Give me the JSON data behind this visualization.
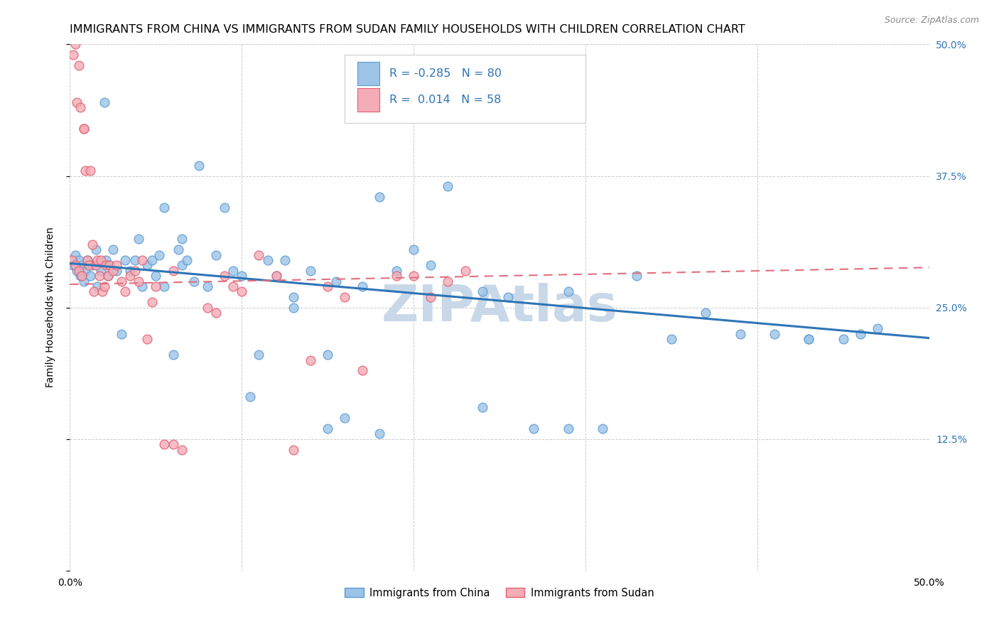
{
  "title": "IMMIGRANTS FROM CHINA VS IMMIGRANTS FROM SUDAN FAMILY HOUSEHOLDS WITH CHILDREN CORRELATION CHART",
  "source": "Source: ZipAtlas.com",
  "ylabel": "Family Households with Children",
  "xlim": [
    0,
    0.5
  ],
  "ylim": [
    0,
    0.5
  ],
  "china_color_edge": "#5b9bd5",
  "china_color_fill": "#9dc3e6",
  "sudan_color_edge": "#e06070",
  "sudan_color_fill": "#f4acb7",
  "china_line_color": "#2e75b6",
  "sudan_line_color": "#e07080",
  "china_R": -0.285,
  "china_N": 80,
  "sudan_R": 0.014,
  "sudan_N": 58,
  "legend_label_china": "Immigrants from China",
  "legend_label_sudan": "Immigrants from Sudan",
  "china_x": [
    0.002,
    0.003,
    0.004,
    0.005,
    0.006,
    0.007,
    0.008,
    0.009,
    0.01,
    0.012,
    0.013,
    0.015,
    0.016,
    0.018,
    0.02,
    0.021,
    0.022,
    0.023,
    0.025,
    0.027,
    0.03,
    0.032,
    0.035,
    0.038,
    0.04,
    0.042,
    0.045,
    0.048,
    0.05,
    0.052,
    0.055,
    0.06,
    0.063,
    0.065,
    0.068,
    0.072,
    0.075,
    0.08,
    0.085,
    0.09,
    0.095,
    0.1,
    0.105,
    0.11,
    0.115,
    0.12,
    0.125,
    0.13,
    0.14,
    0.15,
    0.155,
    0.16,
    0.17,
    0.18,
    0.19,
    0.2,
    0.21,
    0.22,
    0.24,
    0.255,
    0.27,
    0.29,
    0.31,
    0.33,
    0.35,
    0.37,
    0.39,
    0.41,
    0.43,
    0.45,
    0.46,
    0.47,
    0.055,
    0.065,
    0.13,
    0.15,
    0.18,
    0.24,
    0.29,
    0.43
  ],
  "china_y": [
    0.29,
    0.3,
    0.285,
    0.295,
    0.28,
    0.29,
    0.275,
    0.285,
    0.295,
    0.28,
    0.29,
    0.305,
    0.27,
    0.285,
    0.445,
    0.295,
    0.28,
    0.29,
    0.305,
    0.285,
    0.225,
    0.295,
    0.285,
    0.295,
    0.315,
    0.27,
    0.29,
    0.295,
    0.28,
    0.3,
    0.345,
    0.205,
    0.305,
    0.29,
    0.295,
    0.275,
    0.385,
    0.27,
    0.3,
    0.345,
    0.285,
    0.28,
    0.165,
    0.205,
    0.295,
    0.28,
    0.295,
    0.26,
    0.285,
    0.205,
    0.275,
    0.145,
    0.27,
    0.355,
    0.285,
    0.305,
    0.29,
    0.365,
    0.265,
    0.26,
    0.135,
    0.265,
    0.135,
    0.28,
    0.22,
    0.245,
    0.225,
    0.225,
    0.22,
    0.22,
    0.225,
    0.23,
    0.27,
    0.315,
    0.25,
    0.135,
    0.13,
    0.155,
    0.135,
    0.22
  ],
  "sudan_x": [
    0.001,
    0.002,
    0.003,
    0.004,
    0.005,
    0.006,
    0.007,
    0.008,
    0.009,
    0.01,
    0.011,
    0.012,
    0.013,
    0.014,
    0.015,
    0.016,
    0.017,
    0.018,
    0.019,
    0.02,
    0.021,
    0.022,
    0.023,
    0.025,
    0.027,
    0.03,
    0.032,
    0.035,
    0.038,
    0.04,
    0.042,
    0.045,
    0.048,
    0.05,
    0.055,
    0.06,
    0.065,
    0.08,
    0.085,
    0.09,
    0.095,
    0.1,
    0.11,
    0.12,
    0.13,
    0.14,
    0.15,
    0.16,
    0.17,
    0.19,
    0.2,
    0.21,
    0.22,
    0.23,
    0.003,
    0.005,
    0.008,
    0.06
  ],
  "sudan_y": [
    0.295,
    0.49,
    0.29,
    0.445,
    0.285,
    0.44,
    0.28,
    0.42,
    0.38,
    0.295,
    0.29,
    0.38,
    0.31,
    0.265,
    0.29,
    0.295,
    0.28,
    0.295,
    0.265,
    0.27,
    0.29,
    0.28,
    0.29,
    0.285,
    0.29,
    0.275,
    0.265,
    0.28,
    0.285,
    0.275,
    0.295,
    0.22,
    0.255,
    0.27,
    0.12,
    0.285,
    0.115,
    0.25,
    0.245,
    0.28,
    0.27,
    0.265,
    0.3,
    0.28,
    0.115,
    0.2,
    0.27,
    0.26,
    0.19,
    0.28,
    0.28,
    0.26,
    0.275,
    0.285,
    0.5,
    0.48,
    0.42,
    0.12
  ],
  "background_color": "#ffffff",
  "grid_color": "#cccccc",
  "title_fontsize": 11.5,
  "label_fontsize": 10,
  "tick_fontsize": 10,
  "watermark": "ZIPAtlas",
  "watermark_color": "#c8d8e8",
  "china_line_start_y": 0.292,
  "china_line_end_y": 0.221,
  "sudan_line_start_y": 0.272,
  "sudan_line_end_y": 0.288
}
